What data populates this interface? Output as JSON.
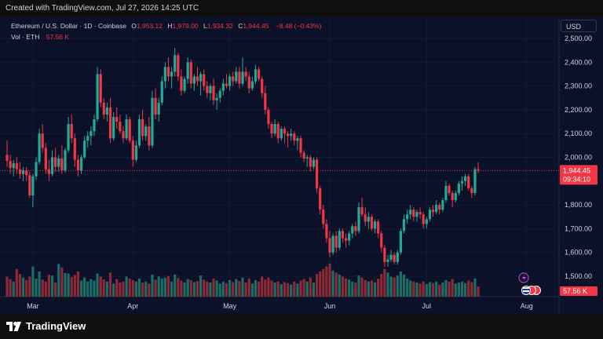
{
  "header": {
    "created": "Created with TradingView.com, Jul 27, 2026 14:25 UTC"
  },
  "legend": {
    "title": "Ethereum / U.S. Dollar · 1D · Coinbase",
    "o_label": "O",
    "o_value": "1,953.12",
    "h_label": "H",
    "h_value": "1,979.00",
    "l_label": "L",
    "l_value": "1,934.32",
    "c_label": "C",
    "c_value": "1,944.45",
    "change": "−8.48 (−0.43%)",
    "vol_label": "Vol · ETH",
    "vol_value": "57.56 K"
  },
  "currency": "USD",
  "price_tag": {
    "price": "1,944.45",
    "countdown": "09:34:10"
  },
  "volume_tag": "57.56 K",
  "footer": {
    "brand": "TradingView"
  },
  "colors": {
    "up": "#22ab94",
    "down": "#f23645",
    "vol_up": "#1b6e66",
    "vol_down": "#8e2a35",
    "bg": "#0b1129"
  },
  "chart_data": {
    "type": "candlestick",
    "title": "Ethereum / U.S. Dollar · 1D · Coinbase",
    "y_ticks": [
      "2,500.00",
      "2,400.00",
      "2,300.00",
      "2,200.00",
      "2,100.00",
      "2,000.00",
      "1,900.00",
      "1,800.00",
      "1,700.00",
      "1,600.00",
      "1,500.00"
    ],
    "y_range": [
      1470,
      2550
    ],
    "x_ticks": [
      {
        "label": "Mar",
        "day": 8
      },
      {
        "label": "Apr",
        "day": 39
      },
      {
        "label": "May",
        "day": 69
      },
      {
        "label": "Jun",
        "day": 100
      },
      {
        "label": "Jul",
        "day": 130
      },
      {
        "label": "Aug",
        "day": 161
      }
    ],
    "last_close": 1944.45,
    "candles": [
      {
        "o": 2010,
        "h": 2070,
        "l": 1960,
        "c": 1985,
        "v": 40
      },
      {
        "o": 1985,
        "h": 2010,
        "l": 1930,
        "c": 1955,
        "v": 35
      },
      {
        "o": 1955,
        "h": 1990,
        "l": 1920,
        "c": 1975,
        "v": 30
      },
      {
        "o": 1975,
        "h": 2000,
        "l": 1930,
        "c": 1950,
        "v": 55
      },
      {
        "o": 1950,
        "h": 1980,
        "l": 1910,
        "c": 1930,
        "v": 45
      },
      {
        "o": 1930,
        "h": 1960,
        "l": 1900,
        "c": 1945,
        "v": 38
      },
      {
        "o": 1945,
        "h": 1960,
        "l": 1900,
        "c": 1925,
        "v": 33
      },
      {
        "o": 1925,
        "h": 1940,
        "l": 1830,
        "c": 1840,
        "v": 40
      },
      {
        "o": 1840,
        "h": 1930,
        "l": 1790,
        "c": 1920,
        "v": 60
      },
      {
        "o": 1920,
        "h": 2000,
        "l": 1905,
        "c": 1980,
        "v": 36
      },
      {
        "o": 1980,
        "h": 2120,
        "l": 1970,
        "c": 2100,
        "v": 50
      },
      {
        "o": 2100,
        "h": 2140,
        "l": 2020,
        "c": 2040,
        "v": 34
      },
      {
        "o": 2040,
        "h": 2060,
        "l": 1930,
        "c": 1950,
        "v": 30
      },
      {
        "o": 1950,
        "h": 1990,
        "l": 1900,
        "c": 1930,
        "v": 44
      },
      {
        "o": 1930,
        "h": 2030,
        "l": 1920,
        "c": 2000,
        "v": 42
      },
      {
        "o": 2000,
        "h": 2040,
        "l": 1940,
        "c": 1960,
        "v": 28
      },
      {
        "o": 1960,
        "h": 2010,
        "l": 1940,
        "c": 1995,
        "v": 65
      },
      {
        "o": 1995,
        "h": 2050,
        "l": 1930,
        "c": 1945,
        "v": 58
      },
      {
        "o": 1945,
        "h": 2040,
        "l": 1935,
        "c": 2030,
        "v": 47
      },
      {
        "o": 2030,
        "h": 2170,
        "l": 2020,
        "c": 2140,
        "v": 46
      },
      {
        "o": 2140,
        "h": 2180,
        "l": 2060,
        "c": 2080,
        "v": 39
      },
      {
        "o": 2080,
        "h": 2100,
        "l": 1960,
        "c": 1990,
        "v": 43
      },
      {
        "o": 1990,
        "h": 2010,
        "l": 1920,
        "c": 1945,
        "v": 50
      },
      {
        "o": 1945,
        "h": 2010,
        "l": 1930,
        "c": 2000,
        "v": 32
      },
      {
        "o": 2000,
        "h": 2090,
        "l": 1995,
        "c": 2070,
        "v": 38
      },
      {
        "o": 2070,
        "h": 2110,
        "l": 2040,
        "c": 2090,
        "v": 30
      },
      {
        "o": 2090,
        "h": 2130,
        "l": 2050,
        "c": 2110,
        "v": 35
      },
      {
        "o": 2110,
        "h": 2180,
        "l": 2090,
        "c": 2160,
        "v": 32
      },
      {
        "o": 2160,
        "h": 2380,
        "l": 2150,
        "c": 2350,
        "v": 46
      },
      {
        "o": 2350,
        "h": 2370,
        "l": 2210,
        "c": 2230,
        "v": 40
      },
      {
        "o": 2230,
        "h": 2250,
        "l": 2160,
        "c": 2180,
        "v": 34
      },
      {
        "o": 2180,
        "h": 2230,
        "l": 2150,
        "c": 2210,
        "v": 30
      },
      {
        "o": 2210,
        "h": 2250,
        "l": 2060,
        "c": 2080,
        "v": 48
      },
      {
        "o": 2080,
        "h": 2190,
        "l": 2070,
        "c": 2170,
        "v": 26
      },
      {
        "o": 2170,
        "h": 2210,
        "l": 2120,
        "c": 2150,
        "v": 35
      },
      {
        "o": 2150,
        "h": 2180,
        "l": 2100,
        "c": 2110,
        "v": 28
      },
      {
        "o": 2110,
        "h": 2130,
        "l": 2060,
        "c": 2080,
        "v": 30
      },
      {
        "o": 2080,
        "h": 2180,
        "l": 2070,
        "c": 2160,
        "v": 40
      },
      {
        "o": 2160,
        "h": 2170,
        "l": 2060,
        "c": 2070,
        "v": 36
      },
      {
        "o": 2070,
        "h": 2090,
        "l": 1960,
        "c": 1990,
        "v": 33
      },
      {
        "o": 1990,
        "h": 2070,
        "l": 1980,
        "c": 2050,
        "v": 30
      },
      {
        "o": 2050,
        "h": 2180,
        "l": 2040,
        "c": 2160,
        "v": 36
      },
      {
        "o": 2160,
        "h": 2200,
        "l": 2070,
        "c": 2090,
        "v": 28
      },
      {
        "o": 2090,
        "h": 2140,
        "l": 2070,
        "c": 2130,
        "v": 30
      },
      {
        "o": 2130,
        "h": 2170,
        "l": 2030,
        "c": 2050,
        "v": 26
      },
      {
        "o": 2050,
        "h": 2280,
        "l": 2040,
        "c": 2250,
        "v": 44
      },
      {
        "o": 2250,
        "h": 2290,
        "l": 2160,
        "c": 2180,
        "v": 34
      },
      {
        "o": 2180,
        "h": 2250,
        "l": 2150,
        "c": 2230,
        "v": 40
      },
      {
        "o": 2230,
        "h": 2340,
        "l": 2220,
        "c": 2320,
        "v": 36
      },
      {
        "o": 2320,
        "h": 2400,
        "l": 2290,
        "c": 2380,
        "v": 38
      },
      {
        "o": 2380,
        "h": 2420,
        "l": 2320,
        "c": 2340,
        "v": 41
      },
      {
        "o": 2340,
        "h": 2380,
        "l": 2290,
        "c": 2360,
        "v": 30
      },
      {
        "o": 2360,
        "h": 2460,
        "l": 2340,
        "c": 2430,
        "v": 44
      },
      {
        "o": 2430,
        "h": 2440,
        "l": 2320,
        "c": 2340,
        "v": 37
      },
      {
        "o": 2340,
        "h": 2370,
        "l": 2260,
        "c": 2280,
        "v": 32
      },
      {
        "o": 2280,
        "h": 2340,
        "l": 2270,
        "c": 2330,
        "v": 28
      },
      {
        "o": 2330,
        "h": 2420,
        "l": 2310,
        "c": 2400,
        "v": 35
      },
      {
        "o": 2400,
        "h": 2410,
        "l": 2290,
        "c": 2310,
        "v": 33
      },
      {
        "o": 2310,
        "h": 2350,
        "l": 2280,
        "c": 2340,
        "v": 29
      },
      {
        "o": 2340,
        "h": 2380,
        "l": 2300,
        "c": 2320,
        "v": 31
      },
      {
        "o": 2320,
        "h": 2360,
        "l": 2260,
        "c": 2350,
        "v": 42
      },
      {
        "o": 2350,
        "h": 2370,
        "l": 2280,
        "c": 2300,
        "v": 34
      },
      {
        "o": 2300,
        "h": 2320,
        "l": 2250,
        "c": 2270,
        "v": 30
      },
      {
        "o": 2270,
        "h": 2310,
        "l": 2240,
        "c": 2300,
        "v": 28
      },
      {
        "o": 2300,
        "h": 2330,
        "l": 2220,
        "c": 2240,
        "v": 36
      },
      {
        "o": 2240,
        "h": 2270,
        "l": 2200,
        "c": 2250,
        "v": 32
      },
      {
        "o": 2250,
        "h": 2290,
        "l": 2230,
        "c": 2280,
        "v": 26
      },
      {
        "o": 2280,
        "h": 2330,
        "l": 2260,
        "c": 2310,
        "v": 30
      },
      {
        "o": 2310,
        "h": 2350,
        "l": 2290,
        "c": 2300,
        "v": 27
      },
      {
        "o": 2300,
        "h": 2350,
        "l": 2280,
        "c": 2340,
        "v": 33
      },
      {
        "o": 2340,
        "h": 2360,
        "l": 2300,
        "c": 2320,
        "v": 29
      },
      {
        "o": 2320,
        "h": 2380,
        "l": 2310,
        "c": 2360,
        "v": 35
      },
      {
        "o": 2360,
        "h": 2380,
        "l": 2290,
        "c": 2310,
        "v": 31
      },
      {
        "o": 2310,
        "h": 2420,
        "l": 2300,
        "c": 2360,
        "v": 38
      },
      {
        "o": 2360,
        "h": 2380,
        "l": 2320,
        "c": 2340,
        "v": 28
      },
      {
        "o": 2340,
        "h": 2360,
        "l": 2270,
        "c": 2290,
        "v": 36
      },
      {
        "o": 2290,
        "h": 2340,
        "l": 2280,
        "c": 2320,
        "v": 26
      },
      {
        "o": 2320,
        "h": 2390,
        "l": 2310,
        "c": 2370,
        "v": 33
      },
      {
        "o": 2370,
        "h": 2380,
        "l": 2320,
        "c": 2330,
        "v": 30
      },
      {
        "o": 2330,
        "h": 2340,
        "l": 2250,
        "c": 2270,
        "v": 40
      },
      {
        "o": 2270,
        "h": 2300,
        "l": 2180,
        "c": 2200,
        "v": 34
      },
      {
        "o": 2200,
        "h": 2210,
        "l": 2120,
        "c": 2140,
        "v": 38
      },
      {
        "o": 2140,
        "h": 2150,
        "l": 2080,
        "c": 2100,
        "v": 32
      },
      {
        "o": 2100,
        "h": 2160,
        "l": 2090,
        "c": 2140,
        "v": 28
      },
      {
        "o": 2140,
        "h": 2150,
        "l": 2060,
        "c": 2080,
        "v": 30
      },
      {
        "o": 2080,
        "h": 2130,
        "l": 2070,
        "c": 2120,
        "v": 25
      },
      {
        "o": 2120,
        "h": 2130,
        "l": 2060,
        "c": 2100,
        "v": 29
      },
      {
        "o": 2100,
        "h": 2110,
        "l": 2040,
        "c": 2090,
        "v": 27
      },
      {
        "o": 2090,
        "h": 2120,
        "l": 2070,
        "c": 2100,
        "v": 24
      },
      {
        "o": 2100,
        "h": 2110,
        "l": 2050,
        "c": 2070,
        "v": 30
      },
      {
        "o": 2070,
        "h": 2090,
        "l": 2030,
        "c": 2080,
        "v": 26
      },
      {
        "o": 2080,
        "h": 2090,
        "l": 2000,
        "c": 2020,
        "v": 32
      },
      {
        "o": 2020,
        "h": 2030,
        "l": 1980,
        "c": 1995,
        "v": 35
      },
      {
        "o": 1995,
        "h": 2010,
        "l": 1960,
        "c": 2000,
        "v": 30
      },
      {
        "o": 2000,
        "h": 2010,
        "l": 1940,
        "c": 1960,
        "v": 38
      },
      {
        "o": 1960,
        "h": 2000,
        "l": 1950,
        "c": 1990,
        "v": 28
      },
      {
        "o": 1990,
        "h": 2000,
        "l": 1850,
        "c": 1870,
        "v": 45
      },
      {
        "o": 1870,
        "h": 1880,
        "l": 1760,
        "c": 1780,
        "v": 50
      },
      {
        "o": 1780,
        "h": 1800,
        "l": 1700,
        "c": 1720,
        "v": 55
      },
      {
        "o": 1720,
        "h": 1740,
        "l": 1640,
        "c": 1660,
        "v": 60
      },
      {
        "o": 1660,
        "h": 1690,
        "l": 1580,
        "c": 1600,
        "v": 66
      },
      {
        "o": 1600,
        "h": 1680,
        "l": 1590,
        "c": 1670,
        "v": 52
      },
      {
        "o": 1670,
        "h": 1690,
        "l": 1600,
        "c": 1620,
        "v": 48
      },
      {
        "o": 1620,
        "h": 1700,
        "l": 1610,
        "c": 1690,
        "v": 44
      },
      {
        "o": 1690,
        "h": 1700,
        "l": 1640,
        "c": 1660,
        "v": 40
      },
      {
        "o": 1660,
        "h": 1680,
        "l": 1620,
        "c": 1650,
        "v": 36
      },
      {
        "o": 1650,
        "h": 1690,
        "l": 1630,
        "c": 1680,
        "v": 34
      },
      {
        "o": 1680,
        "h": 1720,
        "l": 1660,
        "c": 1710,
        "v": 30
      },
      {
        "o": 1710,
        "h": 1730,
        "l": 1670,
        "c": 1690,
        "v": 28
      },
      {
        "o": 1690,
        "h": 1810,
        "l": 1680,
        "c": 1790,
        "v": 42
      },
      {
        "o": 1790,
        "h": 1830,
        "l": 1750,
        "c": 1760,
        "v": 38
      },
      {
        "o": 1760,
        "h": 1790,
        "l": 1710,
        "c": 1730,
        "v": 33
      },
      {
        "o": 1730,
        "h": 1770,
        "l": 1700,
        "c": 1750,
        "v": 30
      },
      {
        "o": 1750,
        "h": 1760,
        "l": 1690,
        "c": 1700,
        "v": 32
      },
      {
        "o": 1700,
        "h": 1740,
        "l": 1680,
        "c": 1730,
        "v": 28
      },
      {
        "o": 1730,
        "h": 1740,
        "l": 1660,
        "c": 1680,
        "v": 36
      },
      {
        "o": 1680,
        "h": 1690,
        "l": 1600,
        "c": 1620,
        "v": 45
      },
      {
        "o": 1620,
        "h": 1630,
        "l": 1540,
        "c": 1560,
        "v": 55
      },
      {
        "o": 1560,
        "h": 1590,
        "l": 1540,
        "c": 1570,
        "v": 48
      },
      {
        "o": 1570,
        "h": 1610,
        "l": 1560,
        "c": 1590,
        "v": 40
      },
      {
        "o": 1590,
        "h": 1600,
        "l": 1550,
        "c": 1560,
        "v": 38
      },
      {
        "o": 1560,
        "h": 1610,
        "l": 1550,
        "c": 1600,
        "v": 42
      },
      {
        "o": 1600,
        "h": 1700,
        "l": 1590,
        "c": 1690,
        "v": 50
      },
      {
        "o": 1690,
        "h": 1760,
        "l": 1680,
        "c": 1740,
        "v": 44
      },
      {
        "o": 1740,
        "h": 1780,
        "l": 1720,
        "c": 1760,
        "v": 36
      },
      {
        "o": 1760,
        "h": 1800,
        "l": 1740,
        "c": 1780,
        "v": 32
      },
      {
        "o": 1780,
        "h": 1790,
        "l": 1730,
        "c": 1750,
        "v": 30
      },
      {
        "o": 1750,
        "h": 1780,
        "l": 1730,
        "c": 1770,
        "v": 28
      },
      {
        "o": 1770,
        "h": 1790,
        "l": 1740,
        "c": 1760,
        "v": 26
      },
      {
        "o": 1760,
        "h": 1770,
        "l": 1700,
        "c": 1720,
        "v": 30
      },
      {
        "o": 1720,
        "h": 1750,
        "l": 1700,
        "c": 1740,
        "v": 25
      },
      {
        "o": 1740,
        "h": 1790,
        "l": 1730,
        "c": 1780,
        "v": 29
      },
      {
        "o": 1780,
        "h": 1800,
        "l": 1750,
        "c": 1770,
        "v": 27
      },
      {
        "o": 1770,
        "h": 1820,
        "l": 1760,
        "c": 1800,
        "v": 30
      },
      {
        "o": 1800,
        "h": 1810,
        "l": 1760,
        "c": 1780,
        "v": 24
      },
      {
        "o": 1780,
        "h": 1830,
        "l": 1770,
        "c": 1820,
        "v": 28
      },
      {
        "o": 1820,
        "h": 1900,
        "l": 1810,
        "c": 1880,
        "v": 33
      },
      {
        "o": 1880,
        "h": 1890,
        "l": 1840,
        "c": 1850,
        "v": 30
      },
      {
        "o": 1850,
        "h": 1860,
        "l": 1790,
        "c": 1820,
        "v": 35
      },
      {
        "o": 1820,
        "h": 1860,
        "l": 1810,
        "c": 1850,
        "v": 26
      },
      {
        "o": 1850,
        "h": 1900,
        "l": 1840,
        "c": 1890,
        "v": 28
      },
      {
        "o": 1890,
        "h": 1920,
        "l": 1860,
        "c": 1900,
        "v": 30
      },
      {
        "o": 1900,
        "h": 1930,
        "l": 1880,
        "c": 1920,
        "v": 27
      },
      {
        "o": 1920,
        "h": 1930,
        "l": 1860,
        "c": 1870,
        "v": 32
      },
      {
        "o": 1870,
        "h": 1880,
        "l": 1830,
        "c": 1850,
        "v": 29
      },
      {
        "o": 1850,
        "h": 1960,
        "l": 1840,
        "c": 1950,
        "v": 36
      },
      {
        "o": 1950,
        "h": 1979,
        "l": 1934,
        "c": 1944.45,
        "v": 20
      }
    ]
  }
}
